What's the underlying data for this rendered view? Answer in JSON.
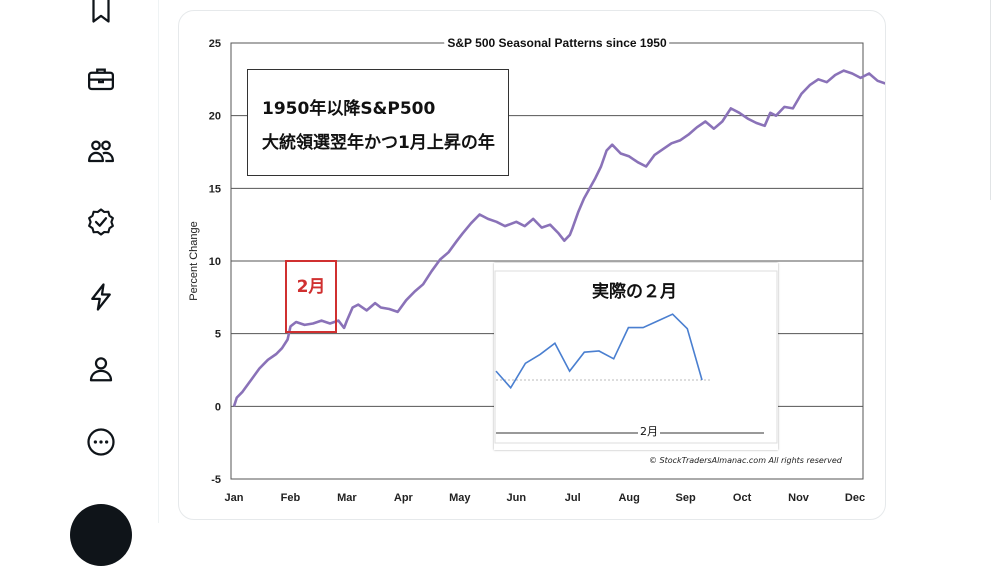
{
  "sidebar": {
    "items": [
      {
        "icon": "bookmark-icon"
      },
      {
        "icon": "briefcase-icon"
      },
      {
        "icon": "communities-icon"
      },
      {
        "icon": "verified-icon"
      },
      {
        "icon": "lightning-icon"
      },
      {
        "icon": "profile-icon"
      },
      {
        "icon": "more-icon"
      }
    ]
  },
  "post": {
    "annotation_line1": "1950年以降S&P500",
    "annotation_line2": "大統領選翌年かつ1月上昇の年",
    "feb_label": "2月",
    "inset_title": "実際の２月",
    "inset_axis_label": "2月",
    "copyright": "© StockTradersAlmanac.com All rights reserved"
  },
  "chart_data": {
    "type": "line",
    "title": "S&P 500 Seasonal Patterns since 1950",
    "ylabel": "Percent Change",
    "xlabel": "",
    "categories": [
      "Jan",
      "Feb",
      "Mar",
      "Apr",
      "May",
      "Jun",
      "Jul",
      "Aug",
      "Sep",
      "Oct",
      "Nov",
      "Dec"
    ],
    "yticks": [
      25,
      20,
      15,
      10,
      5,
      0,
      -5
    ],
    "ylim": [
      -5,
      25
    ],
    "grid": true,
    "series": [
      {
        "color": "#8a72b8",
        "x": [
          0.0,
          0.05,
          0.15,
          0.3,
          0.45,
          0.6,
          0.75,
          0.85,
          0.95,
          1.0,
          1.1,
          1.25,
          1.4,
          1.55,
          1.7,
          1.85,
          1.95,
          2.0,
          2.1,
          2.2,
          2.35,
          2.5,
          2.6,
          2.75,
          2.9,
          3.05,
          3.2,
          3.35,
          3.5,
          3.65,
          3.8,
          3.95,
          4.05,
          4.2,
          4.35,
          4.5,
          4.65,
          4.8,
          5.0,
          5.15,
          5.3,
          5.45,
          5.6,
          5.75,
          5.85,
          5.95,
          6.0,
          6.1,
          6.2,
          6.3,
          6.4,
          6.5,
          6.6,
          6.7,
          6.85,
          7.0,
          7.15,
          7.3,
          7.45,
          7.6,
          7.75,
          7.9,
          8.05,
          8.2,
          8.35,
          8.5,
          8.65,
          8.8,
          8.95,
          9.1,
          9.25,
          9.4,
          9.5,
          9.6,
          9.75,
          9.9,
          10.05,
          10.2,
          10.35,
          10.5,
          10.65,
          10.8,
          10.95,
          11.1,
          11.25,
          11.4,
          11.55,
          11.7,
          11.85,
          11.95
        ],
        "values": [
          0.0,
          0.6,
          1.0,
          1.8,
          2.6,
          3.2,
          3.6,
          4.0,
          4.6,
          5.5,
          5.8,
          5.6,
          5.7,
          5.9,
          5.7,
          5.9,
          5.4,
          5.9,
          6.8,
          7.0,
          6.6,
          7.1,
          6.8,
          6.7,
          6.5,
          7.3,
          7.9,
          8.4,
          9.3,
          10.1,
          10.6,
          11.4,
          11.9,
          12.6,
          13.2,
          12.9,
          12.7,
          12.4,
          12.7,
          12.4,
          12.9,
          12.3,
          12.5,
          11.9,
          11.4,
          11.8,
          12.3,
          13.4,
          14.3,
          15.0,
          15.7,
          16.5,
          17.6,
          18.0,
          17.4,
          17.2,
          16.8,
          16.5,
          17.3,
          17.7,
          18.1,
          18.3,
          18.7,
          19.2,
          19.6,
          19.1,
          19.6,
          20.5,
          20.2,
          19.8,
          19.5,
          19.3,
          20.2,
          20.0,
          20.6,
          20.5,
          21.5,
          22.1,
          22.5,
          22.3,
          22.8,
          23.1,
          22.9,
          22.6,
          22.9,
          22.4,
          22.2,
          22.1,
          22.8,
          24.0
        ]
      }
    ]
  },
  "inset_chart": {
    "type": "line",
    "color": "#4a7fd0",
    "values": [
      2.1,
      0.6,
      2.8,
      3.6,
      4.6,
      2.1,
      3.8,
      3.9,
      3.2,
      6.0,
      6.0,
      6.6,
      7.2,
      5.9,
      1.3
    ],
    "ylim": [
      -3,
      10
    ],
    "baseline": 1.3
  }
}
